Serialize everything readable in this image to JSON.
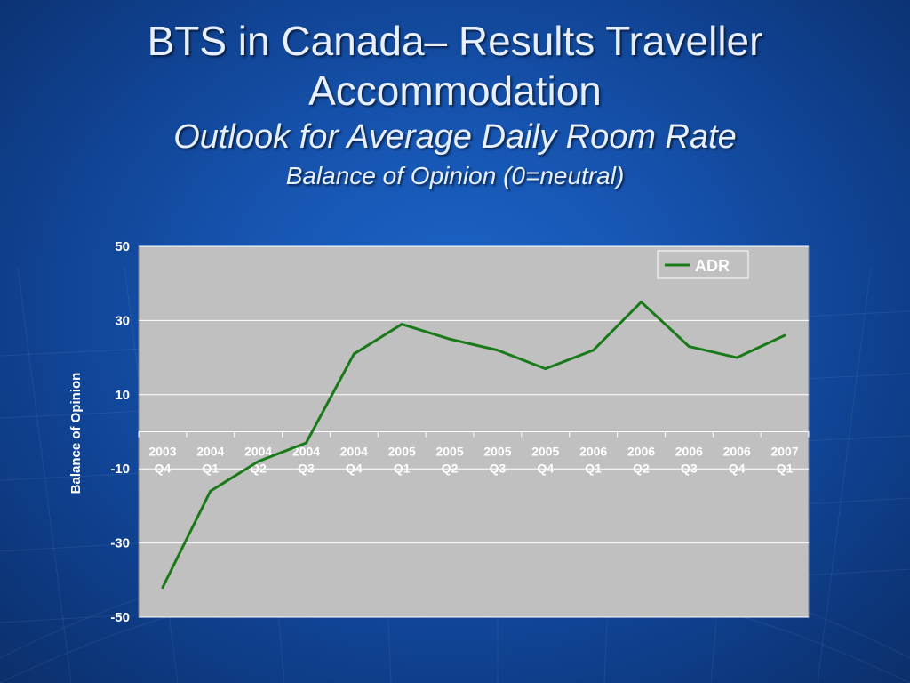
{
  "slide": {
    "title": "BTS in Canada– Results Traveller Accommodation",
    "subtitle": "Outlook for Average Daily Room Rate",
    "subsubtitle": "Balance of Opinion (0=neutral)"
  },
  "colors": {
    "plot_background": "#c0c0c0",
    "series_line": "#1a7a1a",
    "gridline": "#ffffff",
    "text": "#ffffff"
  },
  "chart_data": {
    "type": "line",
    "title": "",
    "xlabel": "",
    "ylabel": "Balance of Opinion",
    "ylim": [
      -50,
      50
    ],
    "yticks": [
      50,
      30,
      10,
      -10,
      -30,
      -50
    ],
    "grid": true,
    "legend_position": "top-right",
    "categories": [
      [
        "2003",
        "Q4"
      ],
      [
        "2004",
        "Q1"
      ],
      [
        "2004",
        "Q2"
      ],
      [
        "2004",
        "Q3"
      ],
      [
        "2004",
        "Q4"
      ],
      [
        "2005",
        "Q1"
      ],
      [
        "2005",
        "Q2"
      ],
      [
        "2005",
        "Q3"
      ],
      [
        "2005",
        "Q4"
      ],
      [
        "2006",
        "Q1"
      ],
      [
        "2006",
        "Q2"
      ],
      [
        "2006",
        "Q3"
      ],
      [
        "2006",
        "Q4"
      ],
      [
        "2007",
        "Q1"
      ]
    ],
    "series": [
      {
        "name": "ADR",
        "values": [
          -42,
          -16,
          -8,
          -3,
          21,
          29,
          25,
          22,
          17,
          22,
          35,
          23,
          20,
          26
        ]
      }
    ]
  }
}
